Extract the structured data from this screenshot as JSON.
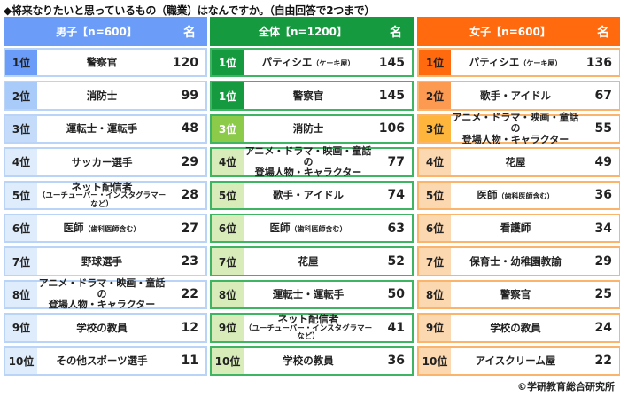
{
  "title": "◆将来なりたいと思っているもの（職業）はなんですか。（自由回答で2つまで）",
  "credit": "©学研教育総合研究所",
  "columns": {
    "male": {
      "header": "男子【n=600】",
      "unit": "名",
      "header_color": "#6b9cf7",
      "rows": [
        {
          "rank": "1位",
          "job": "警察官",
          "sub": "",
          "count": "120",
          "rank_color": "#6b9cf7"
        },
        {
          "rank": "2位",
          "job": "消防士",
          "sub": "",
          "count": "99",
          "rank_color": "#a9cbf9"
        },
        {
          "rank": "3位",
          "job": "運転士・運転手",
          "sub": "",
          "count": "48",
          "rank_color": "#c4dcf9"
        },
        {
          "rank": "4位",
          "job": "サッカー選手",
          "sub": "",
          "count": "29",
          "rank_color": "#dfecfb"
        },
        {
          "rank": "5位",
          "job": "ネット配信者",
          "sub": "（ユーチューバー・インスタグラマーなど）",
          "count": "28",
          "rank_color": "#dfecfb"
        },
        {
          "rank": "6位",
          "job": "医師",
          "paren": "（歯科医師含む）",
          "count": "27",
          "rank_color": "#dfecfb"
        },
        {
          "rank": "7位",
          "job": "野球選手",
          "sub": "",
          "count": "23",
          "rank_color": "#dfecfb"
        },
        {
          "rank": "8位",
          "job": "アニメ・ドラマ・映画・童話の",
          "sub": "登場人物・キャラクター",
          "count": "22",
          "rank_color": "#dfecfb"
        },
        {
          "rank": "9位",
          "job": "学校の教員",
          "sub": "",
          "count": "12",
          "rank_color": "#dfecfb"
        },
        {
          "rank": "10位",
          "job": "その他スポーツ選手",
          "sub": "",
          "count": "11",
          "rank_color": "#dfecfb"
        }
      ]
    },
    "total": {
      "header": "全体【n=1200】",
      "unit": "名",
      "header_color": "#169a3f",
      "rows": [
        {
          "rank": "1位",
          "job": "パティシエ",
          "paren": "（ケーキ屋）",
          "count": "145",
          "rank_color": "#169a3f"
        },
        {
          "rank": "1位",
          "job": "警察官",
          "sub": "",
          "count": "145",
          "rank_color": "#169a3f"
        },
        {
          "rank": "3位",
          "job": "消防士",
          "sub": "",
          "count": "106",
          "rank_color": "#8cca4a"
        },
        {
          "rank": "4位",
          "job": "アニメ・ドラマ・映画・童話の",
          "sub": "登場人物・キャラクター",
          "count": "77",
          "rank_color": "#d7ecb8"
        },
        {
          "rank": "5位",
          "job": "歌手・アイドル",
          "sub": "",
          "count": "74",
          "rank_color": "#d7ecb8"
        },
        {
          "rank": "6位",
          "job": "医師",
          "paren": "（歯科医師含む）",
          "count": "63",
          "rank_color": "#d7ecb8"
        },
        {
          "rank": "7位",
          "job": "花屋",
          "sub": "",
          "count": "52",
          "rank_color": "#d7ecb8"
        },
        {
          "rank": "8位",
          "job": "運転士・運転手",
          "sub": "",
          "count": "50",
          "rank_color": "#d7ecb8"
        },
        {
          "rank": "9位",
          "job": "ネット配信者",
          "sub": "（ユーチューバー・インスタグラマーなど）",
          "count": "41",
          "rank_color": "#d7ecb8"
        },
        {
          "rank": "10位",
          "job": "学校の教員",
          "sub": "",
          "count": "36",
          "rank_color": "#d7ecb8"
        }
      ]
    },
    "female": {
      "header": "女子【n=600】",
      "unit": "名",
      "header_color": "#ff6a0e",
      "rows": [
        {
          "rank": "1位",
          "job": "パティシエ",
          "paren": "（ケーキ屋）",
          "count": "136",
          "rank_color": "#ff6a0e"
        },
        {
          "rank": "2位",
          "job": "歌手・アイドル",
          "sub": "",
          "count": "67",
          "rank_color": "#fd9a52"
        },
        {
          "rank": "3位",
          "job": "アニメ・ドラマ・映画・童話の",
          "sub": "登場人物・キャラクター",
          "count": "55",
          "rank_color": "#fdb63b"
        },
        {
          "rank": "4位",
          "job": "花屋",
          "sub": "",
          "count": "49",
          "rank_color": "#fcd8b0"
        },
        {
          "rank": "5位",
          "job": "医師",
          "paren": "（歯科医師含む）",
          "count": "36",
          "rank_color": "#fcd8b0"
        },
        {
          "rank": "6位",
          "job": "看護師",
          "sub": "",
          "count": "34",
          "rank_color": "#fcd8b0"
        },
        {
          "rank": "7位",
          "job": "保育士・幼稚園教諭",
          "sub": "",
          "count": "29",
          "rank_color": "#fcd8b0"
        },
        {
          "rank": "8位",
          "job": "警察官",
          "sub": "",
          "count": "25",
          "rank_color": "#fcd8b0"
        },
        {
          "rank": "9位",
          "job": "学校の教員",
          "sub": "",
          "count": "24",
          "rank_color": "#fcd8b0"
        },
        {
          "rank": "10位",
          "job": "アイスクリーム屋",
          "sub": "",
          "count": "22",
          "rank_color": "#fcd8b0"
        }
      ]
    }
  },
  "chart_data": {
    "type": "table",
    "title": "将来なりたいと思っているもの（職業）はなんですか。（自由回答で2つまで）",
    "unit": "名",
    "tables": [
      {
        "name": "男子【n=600】",
        "ranks": [
          "1位",
          "2位",
          "3位",
          "4位",
          "5位",
          "6位",
          "7位",
          "8位",
          "9位",
          "10位"
        ],
        "items": [
          "警察官",
          "消防士",
          "運転士・運転手",
          "サッカー選手",
          "ネット配信者（ユーチューバー・インスタグラマーなど）",
          "医師（歯科医師含む）",
          "野球選手",
          "アニメ・ドラマ・映画・童話の登場人物・キャラクター",
          "学校の教員",
          "その他スポーツ選手"
        ],
        "values": [
          120,
          99,
          48,
          29,
          28,
          27,
          23,
          22,
          12,
          11
        ]
      },
      {
        "name": "全体【n=1200】",
        "ranks": [
          "1位",
          "1位",
          "3位",
          "4位",
          "5位",
          "6位",
          "7位",
          "8位",
          "9位",
          "10位"
        ],
        "items": [
          "パティシエ（ケーキ屋）",
          "警察官",
          "消防士",
          "アニメ・ドラマ・映画・童話の登場人物・キャラクター",
          "歌手・アイドル",
          "医師（歯科医師含む）",
          "花屋",
          "運転士・運転手",
          "ネット配信者（ユーチューバー・インスタグラマーなど）",
          "学校の教員"
        ],
        "values": [
          145,
          145,
          106,
          77,
          74,
          63,
          52,
          50,
          41,
          36
        ]
      },
      {
        "name": "女子【n=600】",
        "ranks": [
          "1位",
          "2位",
          "3位",
          "4位",
          "5位",
          "6位",
          "7位",
          "8位",
          "9位",
          "10位"
        ],
        "items": [
          "パティシエ（ケーキ屋）",
          "歌手・アイドル",
          "アニメ・ドラマ・映画・童話の登場人物・キャラクター",
          "花屋",
          "医師（歯科医師含む）",
          "看護師",
          "保育士・幼稚園教諭",
          "警察官",
          "学校の教員",
          "アイスクリーム屋"
        ],
        "values": [
          136,
          67,
          55,
          49,
          36,
          34,
          29,
          25,
          24,
          22
        ]
      }
    ],
    "source": "©学研教育総合研究所"
  }
}
